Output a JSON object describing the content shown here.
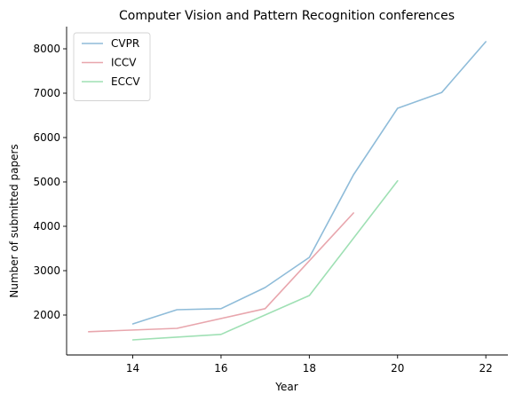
{
  "chart_data": {
    "type": "line",
    "title": "Computer Vision and Pattern Recognition conferences",
    "xlabel": "Year",
    "ylabel": "Number of submitted papers",
    "xlim": [
      12.5,
      22.5
    ],
    "ylim": [
      1100,
      8500
    ],
    "xticks": [
      14,
      16,
      18,
      20,
      22
    ],
    "yticks": [
      2000,
      3000,
      4000,
      5000,
      6000,
      7000,
      8000
    ],
    "grid": false,
    "legend_position": "top-left",
    "series": [
      {
        "name": "CVPR",
        "color": "#8fbcd9",
        "x": [
          14,
          15,
          16,
          17,
          18,
          19,
          20,
          21,
          22
        ],
        "y": [
          1800,
          2120,
          2145,
          2620,
          3300,
          5160,
          6660,
          7015,
          8160
        ]
      },
      {
        "name": "ICCV",
        "color": "#e8a6ad",
        "x": [
          13,
          15,
          17,
          19
        ],
        "y": [
          1625,
          1700,
          2145,
          4300
        ]
      },
      {
        "name": "ECCV",
        "color": "#9fe0b4",
        "x": [
          14,
          16,
          18,
          20
        ],
        "y": [
          1440,
          1565,
          2440,
          5025
        ]
      }
    ]
  }
}
